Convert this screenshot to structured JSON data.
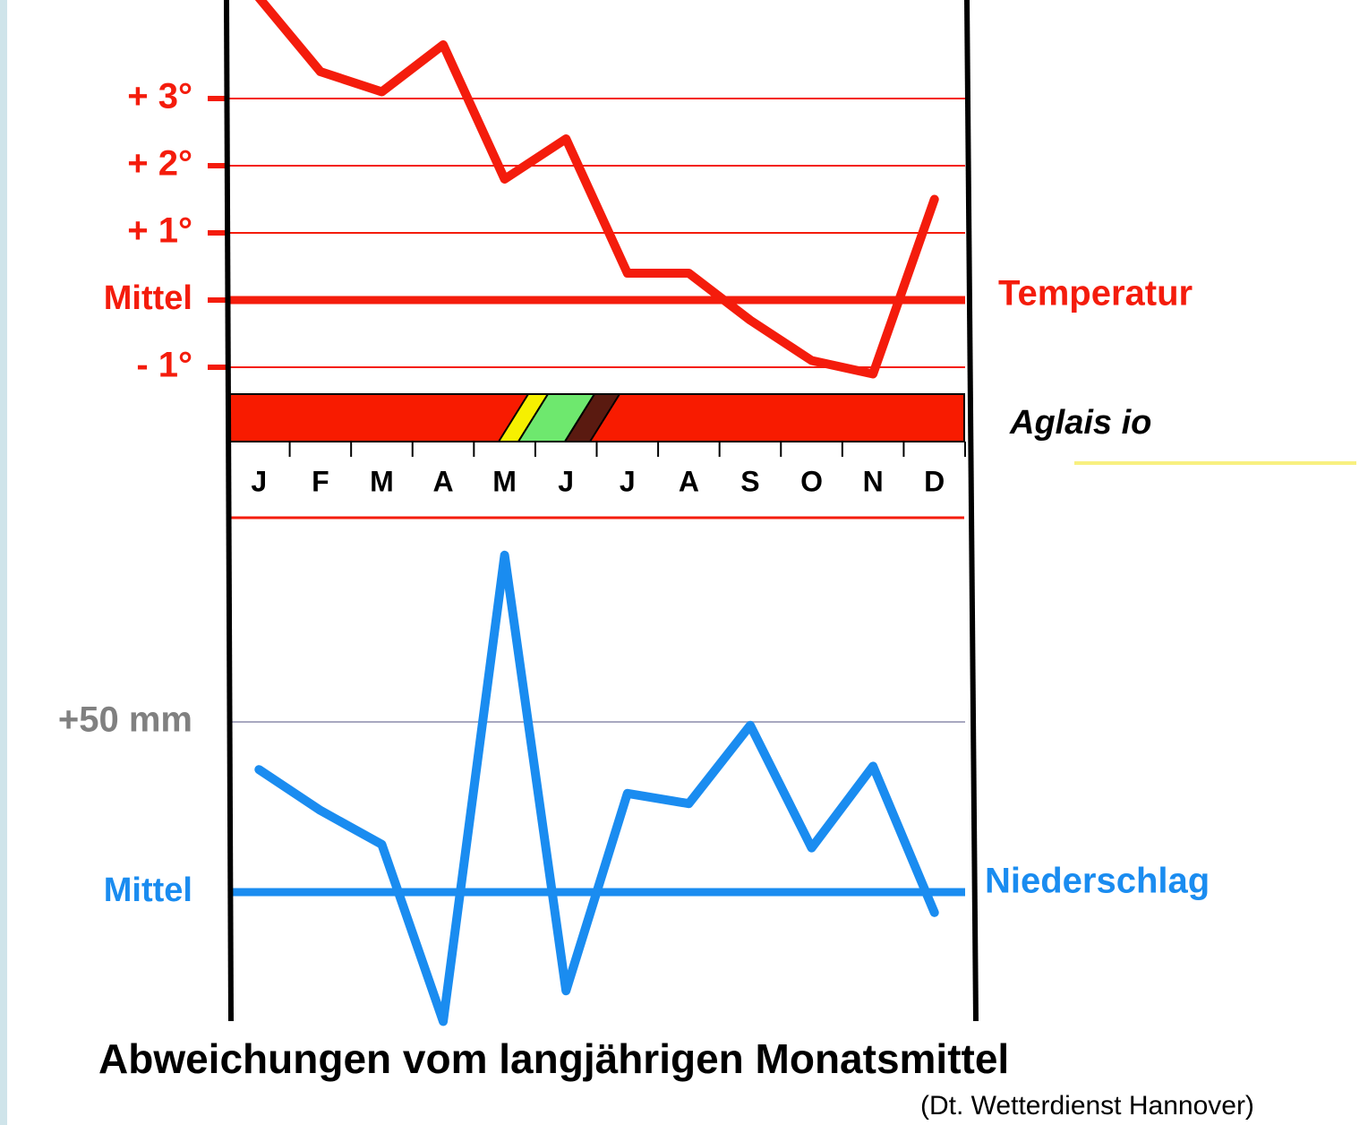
{
  "title": "Abweichungen vom langjährigen  Monatsmittel",
  "source": "(Dt. Wetterdienst Hannover)",
  "band_label": "Aglais io",
  "chart_data": [
    {
      "type": "line",
      "categories": [
        "J",
        "F",
        "M",
        "A",
        "M",
        "J",
        "J",
        "A",
        "S",
        "O",
        "N",
        "D"
      ],
      "series": [
        {
          "name": "Temperatur",
          "color": "#f41c0c",
          "values": [
            4.5,
            3.4,
            3.1,
            3.8,
            1.8,
            2.4,
            0.4,
            0.4,
            -0.3,
            -0.9,
            -1.1,
            1.5
          ]
        }
      ],
      "ylim": [
        -1.4,
        4.5
      ],
      "yticks": [
        {
          "value": 3,
          "label": "+ 3°"
        },
        {
          "value": 2,
          "label": "+ 2°"
        },
        {
          "value": 1,
          "label": "+ 1°"
        },
        {
          "value": 0,
          "label": "Mittel"
        },
        {
          "value": -1,
          "label": "- 1°"
        }
      ]
    },
    {
      "type": "line",
      "series": [
        {
          "name": "Niederschlag",
          "color": "#1a8cf0",
          "values": [
            36,
            24,
            14,
            -38,
            99,
            -29,
            29,
            26,
            49,
            13,
            37,
            -6
          ]
        }
      ],
      "ylim": [
        -40,
        105
      ],
      "yticks": [
        {
          "value": 50,
          "label": "+50 mm"
        },
        {
          "value": 0,
          "label": "Mittel"
        }
      ]
    }
  ]
}
